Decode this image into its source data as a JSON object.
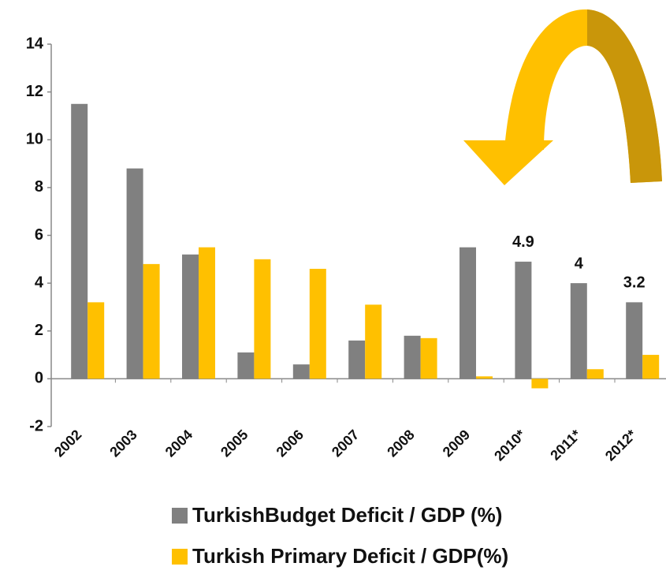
{
  "chart_data": {
    "type": "bar",
    "categories": [
      "2002",
      "2003",
      "2004",
      "2005",
      "2006",
      "2007",
      "2008",
      "2009",
      "2010*",
      "2011*",
      "2012*"
    ],
    "series": [
      {
        "name": "TurkishBudget Deficit / GDP (%)",
        "color": "#808080",
        "values": [
          11.5,
          8.8,
          5.2,
          1.1,
          0.6,
          1.6,
          1.8,
          5.5,
          4.9,
          4.0,
          3.2
        ],
        "value_labels": [
          null,
          null,
          null,
          null,
          null,
          null,
          null,
          null,
          "4.9",
          "4",
          "3.2"
        ]
      },
      {
        "name": "Turkish Primary Deficit / GDP(%)",
        "color": "#ffc000",
        "values": [
          3.2,
          4.8,
          5.5,
          5.0,
          4.6,
          3.1,
          1.7,
          0.1,
          -0.4,
          0.4,
          1.0
        ]
      }
    ],
    "ylim": [
      -2,
      14
    ],
    "yticks": [
      -2,
      0,
      2,
      4,
      6,
      8,
      10,
      12,
      14
    ],
    "grid": false,
    "legend": "bottom"
  }
}
